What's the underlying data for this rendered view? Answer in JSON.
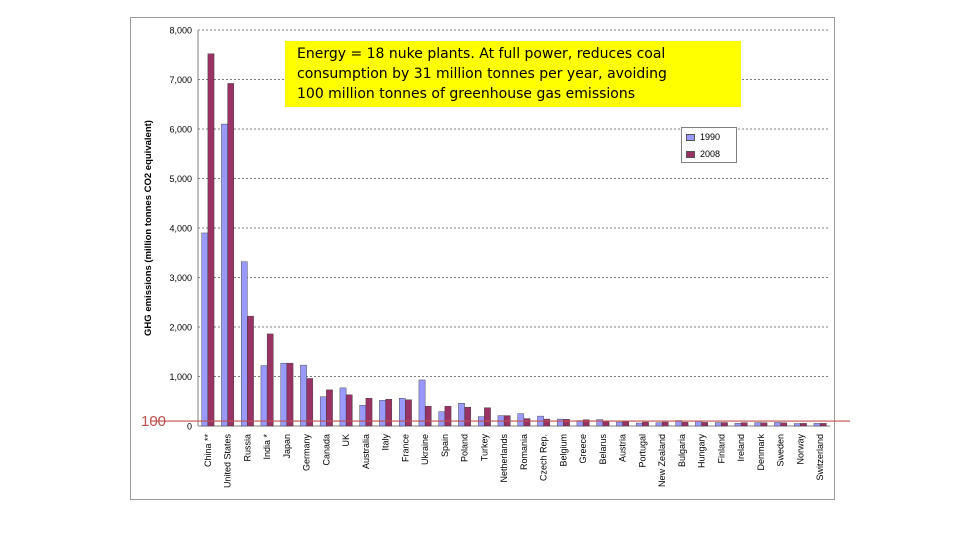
{
  "chart_data": {
    "type": "bar",
    "ylabel": "GHG emissions (million tonnes CO2 equivalent)",
    "ylim": [
      0,
      8000
    ],
    "yticks": [
      "0",
      "1,000",
      "2,000",
      "3,000",
      "4,000",
      "5,000",
      "6,000",
      "7,000",
      "8,000"
    ],
    "grid": "horizontal dotted",
    "legend_position": "top-right",
    "categories": [
      "China **",
      "United States",
      "Russia",
      "India *",
      "Japan",
      "Germany",
      "Canada",
      "UK",
      "Australia",
      "Italy",
      "France",
      "Ukraine",
      "Spain",
      "Poland",
      "Turkey",
      "Netherlands",
      "Romania",
      "Czech Rep.",
      "Belgium",
      "Greece",
      "Belarus",
      "Austria",
      "Portugal",
      "New Zealand",
      "Bulgaria",
      "Hungary",
      "Finland",
      "Ireland",
      "Denmark",
      "Sweden",
      "Norway",
      "Switzerland"
    ],
    "series": [
      {
        "name": "1990",
        "color": "#9999ff",
        "values": [
          3900,
          6100,
          3320,
          1220,
          1270,
          1230,
          590,
          770,
          420,
          520,
          560,
          930,
          290,
          460,
          190,
          210,
          250,
          200,
          140,
          110,
          130,
          80,
          60,
          65,
          110,
          100,
          70,
          55,
          70,
          72,
          50,
          53
        ]
      },
      {
        "name": "2008",
        "color": "#993366",
        "values": [
          7520,
          6920,
          2220,
          1860,
          1270,
          960,
          730,
          630,
          560,
          540,
          530,
          400,
          400,
          380,
          370,
          210,
          150,
          140,
          135,
          125,
          90,
          90,
          80,
          80,
          75,
          73,
          70,
          68,
          66,
          64,
          53,
          53
        ]
      }
    ],
    "reference_line": {
      "value": 100,
      "label": "100",
      "color": "#c0504d"
    }
  },
  "annotation": {
    "lines": [
      "Energy = 18 nuke plants. At full power, reduces coal",
      "consumption by 31 million tonnes per year, avoiding",
      "100 million tonnes of greenhouse gas emissions"
    ],
    "background": "#ffff00"
  }
}
